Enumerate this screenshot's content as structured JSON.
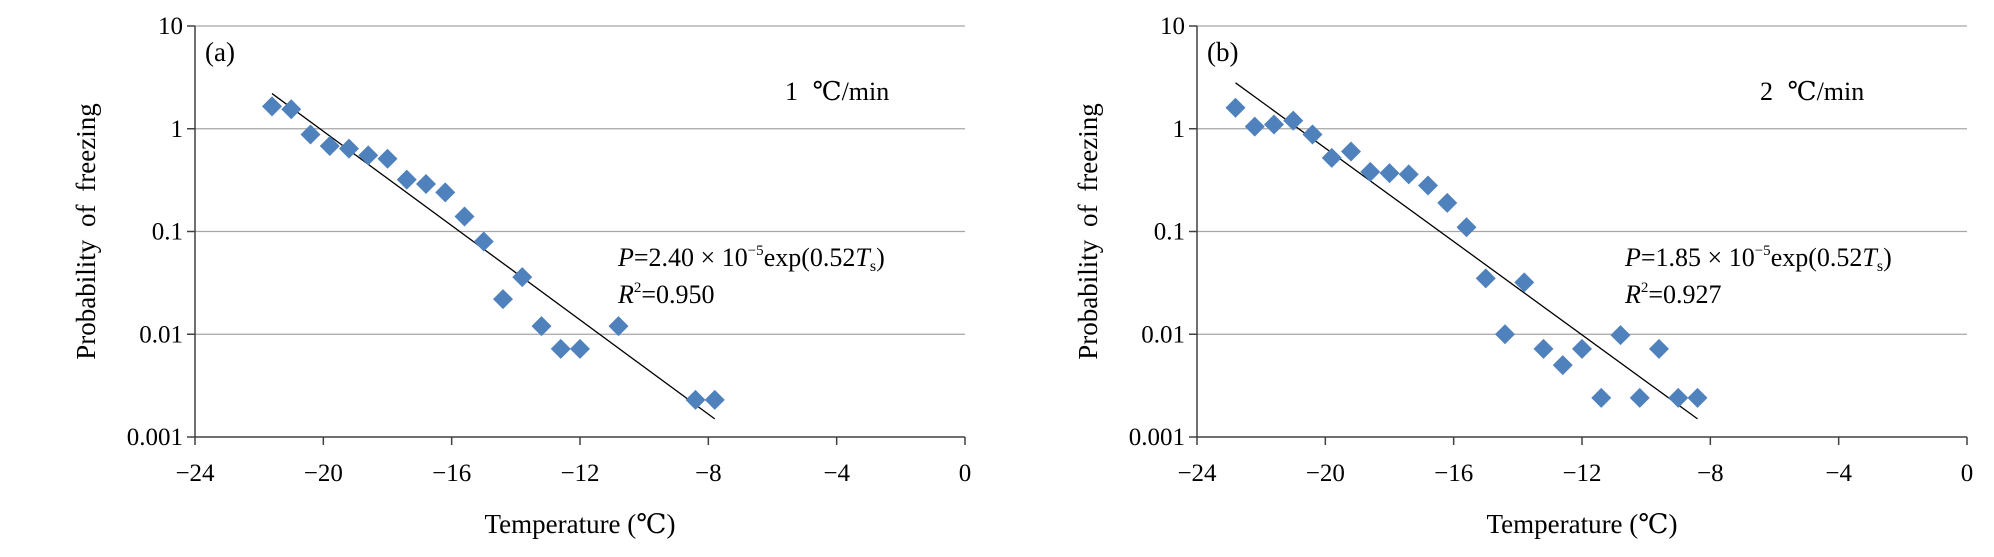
{
  "chart_data": [
    {
      "type": "scatter",
      "panel_label": "(a)",
      "rate_label": "1 ℃/min",
      "xlabel": "Temperature (℃)",
      "ylabel": "Probability of freezing",
      "xlim": [
        -24,
        0
      ],
      "ylim": [
        0.001,
        10
      ],
      "yscale": "log",
      "x_ticks": [
        -24,
        -20,
        -16,
        -12,
        -8,
        -4,
        0
      ],
      "x_tick_labels": [
        "−24",
        "−20",
        "−16",
        "−12",
        "−8",
        "−4",
        "0"
      ],
      "y_ticks": [
        0.001,
        0.01,
        0.1,
        1,
        10
      ],
      "y_tick_labels": [
        "0.001",
        "0.01",
        "0.1",
        "1",
        "10"
      ],
      "grid": "horizontal",
      "marker_color": "#4f81bd",
      "equation": {
        "p_prefix": "P",
        "p_body": "=2.40 × 10",
        "exponent": "−5",
        "exp_part": "exp(0.52",
        "var": "T",
        "sub": "s",
        "close": ")",
        "r_prefix": "R",
        "r_sup": "2",
        "r_value": "=0.950"
      },
      "points": [
        {
          "x": -21.6,
          "y": 1.65
        },
        {
          "x": -21.0,
          "y": 1.55
        },
        {
          "x": -20.4,
          "y": 0.88
        },
        {
          "x": -19.8,
          "y": 0.68
        },
        {
          "x": -19.2,
          "y": 0.64
        },
        {
          "x": -18.6,
          "y": 0.55
        },
        {
          "x": -18.0,
          "y": 0.51
        },
        {
          "x": -17.4,
          "y": 0.32
        },
        {
          "x": -16.8,
          "y": 0.29
        },
        {
          "x": -16.2,
          "y": 0.24
        },
        {
          "x": -15.6,
          "y": 0.14
        },
        {
          "x": -15.0,
          "y": 0.08
        },
        {
          "x": -14.4,
          "y": 0.022
        },
        {
          "x": -13.8,
          "y": 0.036
        },
        {
          "x": -13.2,
          "y": 0.012
        },
        {
          "x": -12.6,
          "y": 0.0072
        },
        {
          "x": -12.0,
          "y": 0.0072
        },
        {
          "x": -10.8,
          "y": 0.012
        },
        {
          "x": -8.4,
          "y": 0.0023
        },
        {
          "x": -7.8,
          "y": 0.0023
        }
      ],
      "fit_line": [
        {
          "x": -21.6,
          "y": 2.2
        },
        {
          "x": -7.8,
          "y": 0.0015
        }
      ]
    },
    {
      "type": "scatter",
      "panel_label": "(b)",
      "rate_label": "2 ℃/min",
      "xlabel": "Temperature (℃)",
      "ylabel": "Probability of freezing",
      "xlim": [
        -24,
        0
      ],
      "ylim": [
        0.001,
        10
      ],
      "yscale": "log",
      "x_ticks": [
        -24,
        -20,
        -16,
        -12,
        -8,
        -4,
        0
      ],
      "x_tick_labels": [
        "−24",
        "−20",
        "−16",
        "−12",
        "−8",
        "−4",
        "0"
      ],
      "y_ticks": [
        0.001,
        0.01,
        0.1,
        1,
        10
      ],
      "y_tick_labels": [
        "0.001",
        "0.01",
        "0.1",
        "1",
        "10"
      ],
      "grid": "horizontal",
      "marker_color": "#4f81bd",
      "equation": {
        "p_prefix": "P",
        "p_body": "=1.85 × 10",
        "exponent": "−5",
        "exp_part": "exp(0.52",
        "var": "T",
        "sub": "s",
        "close": ")",
        "r_prefix": "R",
        "r_sup": "2",
        "r_value": "=0.927"
      },
      "points": [
        {
          "x": -22.8,
          "y": 1.6
        },
        {
          "x": -22.2,
          "y": 1.05
        },
        {
          "x": -21.6,
          "y": 1.1
        },
        {
          "x": -21.0,
          "y": 1.2
        },
        {
          "x": -20.4,
          "y": 0.88
        },
        {
          "x": -19.8,
          "y": 0.52
        },
        {
          "x": -19.2,
          "y": 0.6
        },
        {
          "x": -18.6,
          "y": 0.38
        },
        {
          "x": -18.0,
          "y": 0.37
        },
        {
          "x": -17.4,
          "y": 0.36
        },
        {
          "x": -16.8,
          "y": 0.28
        },
        {
          "x": -16.2,
          "y": 0.19
        },
        {
          "x": -15.6,
          "y": 0.11
        },
        {
          "x": -15.0,
          "y": 0.035
        },
        {
          "x": -14.4,
          "y": 0.01
        },
        {
          "x": -13.8,
          "y": 0.032
        },
        {
          "x": -13.2,
          "y": 0.0072
        },
        {
          "x": -12.6,
          "y": 0.005
        },
        {
          "x": -12.0,
          "y": 0.0072
        },
        {
          "x": -11.4,
          "y": 0.0024
        },
        {
          "x": -10.8,
          "y": 0.0098
        },
        {
          "x": -10.2,
          "y": 0.0024
        },
        {
          "x": -9.6,
          "y": 0.0072
        },
        {
          "x": -9.0,
          "y": 0.0024
        },
        {
          "x": -8.4,
          "y": 0.0024
        }
      ],
      "fit_line": [
        {
          "x": -22.8,
          "y": 2.8
        },
        {
          "x": -8.4,
          "y": 0.0015
        }
      ]
    }
  ]
}
